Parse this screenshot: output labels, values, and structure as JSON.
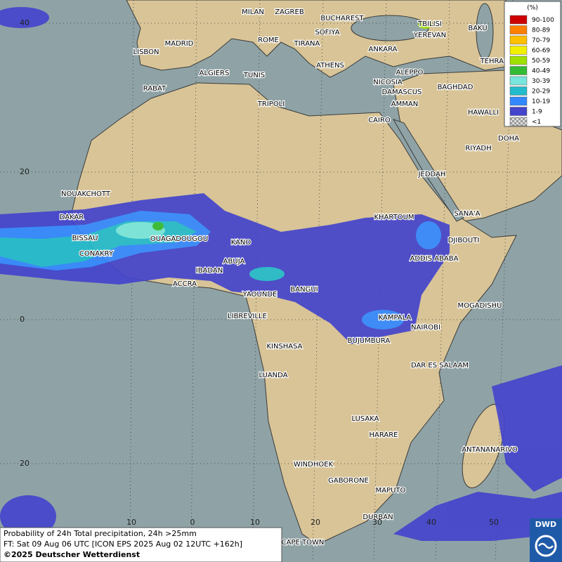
{
  "map": {
    "cities": [
      "MILAN",
      "ZAGREB",
      "BUCHAREST",
      "TBILISI",
      "BAKU",
      "SOFIYA",
      "YEREVAN",
      "MADRID",
      "ROME",
      "TIRANA",
      "ANKARA",
      "TEHRAN",
      "LISBON",
      "ATHENS",
      "ALGIERS",
      "TUNIS",
      "ALEPPO",
      "RABAT",
      "NICOSIA",
      "BAGHDAD",
      "DAMASCUS",
      "TRIPOLI",
      "AMMAN",
      "HAWALLI",
      "CAIRO",
      "DOHA",
      "RIYADH",
      "JEDDAH",
      "NOUAKCHOTT",
      "SANA'A",
      "DAKAR",
      "KHARTOUM",
      "DJIBOUTI",
      "BISSAU",
      "OUAGADOUGOU",
      "KANO",
      "ADDIS ABABA",
      "CONAKRY",
      "ABUJA",
      "IBADAN",
      "ACCRA",
      "BANGUI",
      "YAOUNDE",
      "MOGADISHU",
      "LIBREVILLE",
      "KAMPALA",
      "NAIROBI",
      "BUJUMBURA",
      "KINSHASA",
      "DAR ES SALAAM",
      "LUANDA",
      "LUSAKA",
      "HARARE",
      "ANTANANARIVO",
      "WINDHOEK",
      "GABORONE",
      "MAPUTO",
      "DURBAN",
      "CAPE TOWN"
    ],
    "lat_labels": [
      "40",
      "20",
      "0",
      "20"
    ],
    "lon_labels": [
      "10",
      "0",
      "10",
      "20",
      "30",
      "40",
      "50"
    ]
  },
  "legend": {
    "title": "(%)",
    "items": [
      {
        "label": "90-100",
        "color": "#cc0000"
      },
      {
        "label": "80-89",
        "color": "#ff7f00"
      },
      {
        "label": "70-79",
        "color": "#ffc000"
      },
      {
        "label": "60-69",
        "color": "#f0f000"
      },
      {
        "label": "50-59",
        "color": "#a0e000"
      },
      {
        "label": "40-49",
        "color": "#33bb33"
      },
      {
        "label": "30-39",
        "color": "#77e6dd"
      },
      {
        "label": "20-29",
        "color": "#22bbcc"
      },
      {
        "label": "10-19",
        "color": "#3388ff"
      },
      {
        "label": "1-9",
        "color": "#4444cc"
      },
      {
        "label": "<1",
        "color": "#bbbbbb"
      }
    ]
  },
  "caption": {
    "line1": "Probability of 24h Total precipitation, 24h >25mm",
    "line2": "FT: Sat 09 Aug 06 UTC [ICON EPS 2025 Aug 02 12UTC +162h]",
    "line3": "©2025 Deutscher Wetterdienst"
  },
  "logo": "DWD"
}
